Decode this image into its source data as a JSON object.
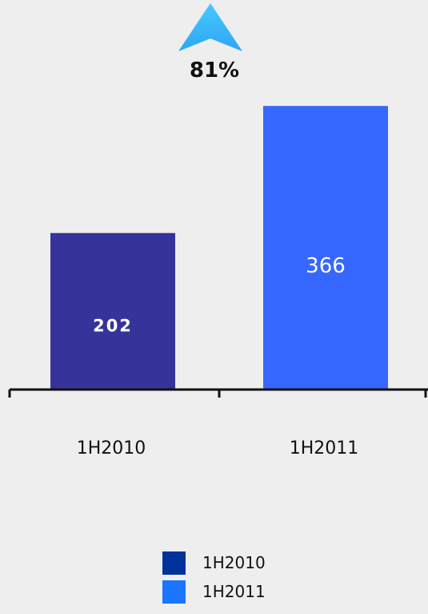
{
  "chart_data": {
    "type": "bar",
    "categories": [
      "1H2010",
      "1H2011"
    ],
    "values": [
      202,
      366
    ],
    "value_labels": [
      "202",
      "366"
    ],
    "bar_colors": [
      "#36349a",
      "#3667fe"
    ],
    "axis_color": "#111111",
    "ylim": [
      0,
      400
    ],
    "grid": false,
    "annotation": {
      "text": "81%",
      "icon": "up-arrow-icon",
      "color": "#2ea6f5"
    },
    "legend": {
      "placement": "bottom-center",
      "entries": [
        {
          "label": "1H2010",
          "color": "#003399"
        },
        {
          "label": "1H2011",
          "color": "#1a75ff"
        }
      ]
    }
  }
}
